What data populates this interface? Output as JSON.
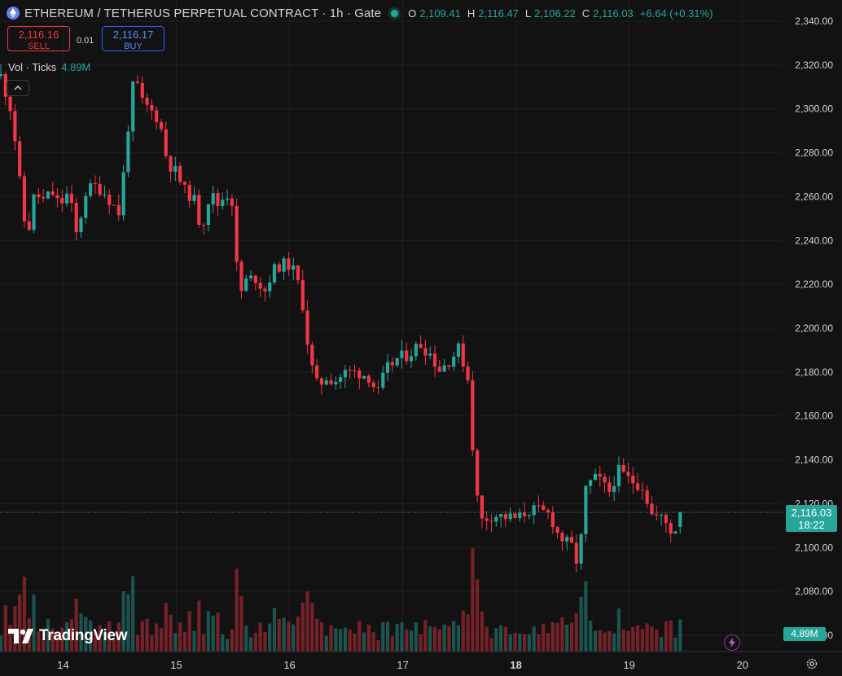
{
  "header": {
    "title": "ETHEREUM / TETHERUS PERPETUAL CONTRACT · 1h · Gate",
    "ohlc": [
      {
        "k": "O",
        "v": "2,109.41"
      },
      {
        "k": "H",
        "v": "2,116.47"
      },
      {
        "k": "L",
        "v": "2,106.22"
      },
      {
        "k": "C",
        "v": "2,116.03"
      }
    ],
    "change": "+6.64 (+0.31%)"
  },
  "trade": {
    "sell_price": "2,116.16",
    "sell_label": "SELL",
    "buy_price": "2,116.17",
    "buy_label": "BUY",
    "spread": "0.01"
  },
  "volume": {
    "label": "Vol · Ticks",
    "value": "4.89M"
  },
  "last_price": {
    "price": "2,116.03",
    "countdown": "18:22"
  },
  "brand": "TradingView",
  "colors": {
    "up": "#26a69a",
    "down": "#f23645",
    "bg": "#121212",
    "grid": "#1f1f1f"
  },
  "chart_data": {
    "type": "candlestick",
    "yaxis_ticks": [
      "2,340.00",
      "2,320.00",
      "2,300.00",
      "2,280.00",
      "2,260.00",
      "2,240.00",
      "2,220.00",
      "2,200.00",
      "2,180.00",
      "2,160.00",
      "2,140.00",
      "2,120.00",
      "2,100.00",
      "2,080.00",
      "2,060.00"
    ],
    "ylim": [
      2060,
      2340
    ],
    "xaxis_ticks": [
      {
        "label": "14",
        "bold": false
      },
      {
        "label": "15",
        "bold": false
      },
      {
        "label": "16",
        "bold": false
      },
      {
        "label": "17",
        "bold": false
      },
      {
        "label": "18",
        "bold": true
      },
      {
        "label": "19",
        "bold": false
      },
      {
        "label": "20",
        "bold": false
      }
    ],
    "xlim": [
      13.45,
      19.93
    ],
    "anchors": [
      [
        13.45,
        2315
      ],
      [
        13.55,
        2298
      ],
      [
        13.62,
        2265
      ],
      [
        13.68,
        2240
      ],
      [
        13.75,
        2262
      ],
      [
        13.82,
        2258
      ],
      [
        13.9,
        2262
      ],
      [
        13.97,
        2256
      ],
      [
        14.05,
        2262
      ],
      [
        14.12,
        2242
      ],
      [
        14.2,
        2262
      ],
      [
        14.27,
        2265
      ],
      [
        14.35,
        2263
      ],
      [
        14.42,
        2258
      ],
      [
        14.5,
        2252
      ],
      [
        14.57,
        2290
      ],
      [
        14.63,
        2315
      ],
      [
        14.7,
        2303
      ],
      [
        14.78,
        2299
      ],
      [
        14.85,
        2295
      ],
      [
        14.92,
        2276
      ],
      [
        15.0,
        2271
      ],
      [
        15.08,
        2262
      ],
      [
        15.15,
        2260
      ],
      [
        15.22,
        2245
      ],
      [
        15.3,
        2262
      ],
      [
        15.37,
        2256
      ],
      [
        15.44,
        2262
      ],
      [
        15.5,
        2257
      ],
      [
        15.55,
        2214
      ],
      [
        15.62,
        2222
      ],
      [
        15.7,
        2223
      ],
      [
        15.78,
        2217
      ],
      [
        15.85,
        2226
      ],
      [
        15.92,
        2229
      ],
      [
        16.0,
        2229
      ],
      [
        16.06,
        2224
      ],
      [
        16.12,
        2210
      ],
      [
        16.18,
        2185
      ],
      [
        16.25,
        2173
      ],
      [
        16.32,
        2178
      ],
      [
        16.4,
        2176
      ],
      [
        16.5,
        2180
      ],
      [
        16.6,
        2180
      ],
      [
        16.7,
        2178
      ],
      [
        16.78,
        2170
      ],
      [
        16.85,
        2181
      ],
      [
        16.95,
        2186
      ],
      [
        17.05,
        2188
      ],
      [
        17.15,
        2193
      ],
      [
        17.25,
        2188
      ],
      [
        17.32,
        2181
      ],
      [
        17.42,
        2186
      ],
      [
        17.5,
        2191
      ],
      [
        17.58,
        2176
      ],
      [
        17.63,
        2136
      ],
      [
        17.68,
        2112
      ],
      [
        17.8,
        2115
      ],
      [
        17.9,
        2114
      ],
      [
        18.02,
        2113
      ],
      [
        18.1,
        2117
      ],
      [
        18.18,
        2117
      ],
      [
        18.3,
        2115
      ],
      [
        18.38,
        2105
      ],
      [
        18.5,
        2100
      ],
      [
        18.55,
        2091
      ],
      [
        18.62,
        2128
      ],
      [
        18.72,
        2132
      ],
      [
        18.82,
        2125
      ],
      [
        18.9,
        2135
      ],
      [
        19.0,
        2131
      ],
      [
        19.12,
        2128
      ],
      [
        19.2,
        2115
      ],
      [
        19.3,
        2113
      ],
      [
        19.38,
        2107
      ],
      [
        19.44,
        2110
      ],
      [
        19.49,
        2116.03
      ]
    ]
  }
}
